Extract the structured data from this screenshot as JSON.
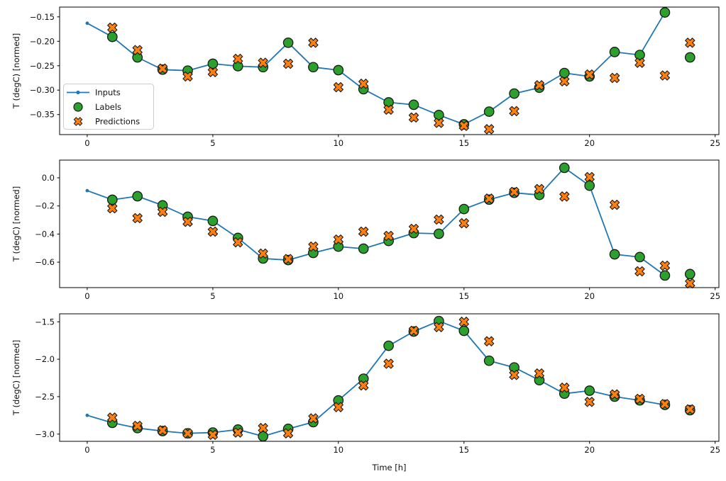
{
  "figure": {
    "background": "#ffffff",
    "colors": {
      "inputs": "#1f77b4",
      "labels": "#2ca02c",
      "predictions": "#ff7f0e",
      "marker_edge": "#1a1a1a",
      "axis": "#000000",
      "legend_border": "#cccccc"
    },
    "legend": {
      "position": "upper-left-of-first-subplot",
      "items": [
        {
          "label": "Inputs",
          "marker": "line-with-dot",
          "color": "#1f77b4"
        },
        {
          "label": "Labels",
          "marker": "filled-circle",
          "color": "#2ca02c"
        },
        {
          "label": "Predictions",
          "marker": "filled-x",
          "color": "#ff7f0e"
        }
      ]
    }
  },
  "chart_data": [
    {
      "type": "line",
      "subplot": 1,
      "ylabel": "T (degC) [normed]",
      "xlabel": "",
      "legend": true,
      "grid": false,
      "xlim": [
        -1.1,
        25.15
      ],
      "ylim": [
        -0.391,
        -0.13
      ],
      "xticks": [
        0,
        5,
        10,
        15,
        20,
        25
      ],
      "xtick_labels": [
        "0",
        "5",
        "10",
        "15",
        "20",
        "25"
      ],
      "yticks": [
        -0.15,
        -0.2,
        -0.25,
        -0.3,
        -0.35
      ],
      "ytick_labels": [
        "−0.15",
        "−0.20",
        "−0.25",
        "−0.30",
        "−0.35"
      ],
      "series": [
        {
          "name": "Inputs",
          "type": "line+dot",
          "x": [
            0,
            1,
            2,
            3,
            4,
            5,
            6,
            7,
            8,
            9,
            10,
            11,
            12,
            13,
            14,
            15,
            16,
            17,
            18,
            19,
            20,
            21,
            22,
            23
          ],
          "y": [
            -0.163,
            -0.191,
            -0.233,
            -0.258,
            -0.26,
            -0.246,
            -0.251,
            -0.253,
            -0.203,
            -0.253,
            -0.259,
            -0.298,
            -0.325,
            -0.33,
            -0.351,
            -0.37,
            -0.344,
            -0.307,
            -0.295,
            -0.265,
            -0.272,
            -0.222,
            -0.228,
            -0.141
          ]
        },
        {
          "name": "Labels",
          "type": "scatter-circle",
          "x": [
            1,
            2,
            3,
            4,
            5,
            6,
            7,
            8,
            9,
            10,
            11,
            12,
            13,
            14,
            15,
            16,
            17,
            18,
            19,
            20,
            21,
            22,
            23,
            24
          ],
          "y": [
            -0.191,
            -0.233,
            -0.258,
            -0.26,
            -0.246,
            -0.251,
            -0.253,
            -0.203,
            -0.253,
            -0.259,
            -0.298,
            -0.325,
            -0.33,
            -0.351,
            -0.37,
            -0.344,
            -0.307,
            -0.295,
            -0.265,
            -0.272,
            -0.222,
            -0.228,
            -0.141,
            -0.233
          ]
        },
        {
          "name": "Predictions",
          "type": "scatter-x",
          "x": [
            1,
            2,
            3,
            4,
            5,
            6,
            7,
            8,
            9,
            10,
            11,
            12,
            13,
            14,
            15,
            16,
            17,
            18,
            19,
            20,
            21,
            22,
            23,
            24
          ],
          "y": [
            -0.172,
            -0.218,
            -0.256,
            -0.272,
            -0.263,
            -0.236,
            -0.244,
            -0.246,
            -0.203,
            -0.294,
            -0.287,
            -0.34,
            -0.356,
            -0.367,
            -0.373,
            -0.38,
            -0.343,
            -0.29,
            -0.282,
            -0.268,
            -0.275,
            -0.244,
            -0.27,
            -0.203
          ]
        }
      ]
    },
    {
      "type": "line",
      "subplot": 2,
      "ylabel": "T (degC) [normed]",
      "xlabel": "",
      "legend": false,
      "grid": false,
      "xlim": [
        -1.1,
        25.15
      ],
      "ylim": [
        -0.781,
        0.126
      ],
      "xticks": [
        0,
        5,
        10,
        15,
        20,
        25
      ],
      "xtick_labels": [
        "0",
        "5",
        "10",
        "15",
        "20",
        "25"
      ],
      "yticks": [
        0.0,
        -0.2,
        -0.4,
        -0.6
      ],
      "ytick_labels": [
        "0.0",
        "−0.2",
        "−0.4",
        "−0.6"
      ],
      "series": [
        {
          "name": "Inputs",
          "type": "line+dot",
          "x": [
            0,
            1,
            2,
            3,
            4,
            5,
            6,
            7,
            8,
            9,
            10,
            11,
            12,
            13,
            14,
            15,
            16,
            17,
            18,
            19,
            20,
            21,
            22,
            23
          ],
          "y": [
            -0.091,
            -0.156,
            -0.131,
            -0.196,
            -0.277,
            -0.307,
            -0.428,
            -0.574,
            -0.585,
            -0.534,
            -0.489,
            -0.504,
            -0.449,
            -0.393,
            -0.398,
            -0.222,
            -0.155,
            -0.107,
            -0.122,
            0.071,
            -0.056,
            -0.544,
            -0.564,
            -0.695
          ]
        },
        {
          "name": "Labels",
          "type": "scatter-circle",
          "x": [
            1,
            2,
            3,
            4,
            5,
            6,
            7,
            8,
            9,
            10,
            11,
            12,
            13,
            14,
            15,
            16,
            17,
            18,
            19,
            20,
            21,
            22,
            23,
            24
          ],
          "y": [
            -0.156,
            -0.131,
            -0.196,
            -0.277,
            -0.307,
            -0.428,
            -0.574,
            -0.585,
            -0.534,
            -0.489,
            -0.504,
            -0.449,
            -0.393,
            -0.398,
            -0.222,
            -0.155,
            -0.107,
            -0.122,
            0.071,
            -0.056,
            -0.544,
            -0.564,
            -0.695,
            -0.685
          ]
        },
        {
          "name": "Predictions",
          "type": "scatter-x",
          "x": [
            1,
            2,
            3,
            4,
            5,
            6,
            7,
            8,
            9,
            10,
            11,
            12,
            13,
            14,
            15,
            16,
            17,
            18,
            19,
            20,
            21,
            22,
            23,
            24
          ],
          "y": [
            -0.217,
            -0.287,
            -0.242,
            -0.313,
            -0.383,
            -0.459,
            -0.539,
            -0.578,
            -0.489,
            -0.439,
            -0.383,
            -0.413,
            -0.363,
            -0.297,
            -0.323,
            -0.148,
            -0.1,
            -0.08,
            -0.133,
            0.005,
            -0.192,
            -0.665,
            -0.625,
            -0.751
          ]
        }
      ]
    },
    {
      "type": "line",
      "subplot": 3,
      "ylabel": "T (degC) [normed]",
      "xlabel": "Time [h]",
      "legend": false,
      "grid": false,
      "xlim": [
        -1.1,
        25.15
      ],
      "ylim": [
        -3.097,
        -1.393
      ],
      "xticks": [
        0,
        5,
        10,
        15,
        20,
        25
      ],
      "xtick_labels": [
        "0",
        "5",
        "10",
        "15",
        "20",
        "25"
      ],
      "yticks": [
        -1.5,
        -2.0,
        -2.5,
        -3.0
      ],
      "ytick_labels": [
        "−1.5",
        "−2.0",
        "−2.5",
        "−3.0"
      ],
      "series": [
        {
          "name": "Inputs",
          "type": "line+dot",
          "x": [
            0,
            1,
            2,
            3,
            4,
            5,
            6,
            7,
            8,
            9,
            10,
            11,
            12,
            13,
            14,
            15,
            16,
            17,
            18,
            19,
            20,
            21,
            22,
            23
          ],
          "y": [
            -2.75,
            -2.85,
            -2.92,
            -2.96,
            -2.99,
            -2.98,
            -2.94,
            -3.03,
            -2.93,
            -2.84,
            -2.55,
            -2.26,
            -1.82,
            -1.63,
            -1.49,
            -1.62,
            -2.02,
            -2.11,
            -2.28,
            -2.46,
            -2.42,
            -2.5,
            -2.55,
            -2.61
          ]
        },
        {
          "name": "Labels",
          "type": "scatter-circle",
          "x": [
            1,
            2,
            3,
            4,
            5,
            6,
            7,
            8,
            9,
            10,
            11,
            12,
            13,
            14,
            15,
            16,
            17,
            18,
            19,
            20,
            21,
            22,
            23,
            24
          ],
          "y": [
            -2.85,
            -2.92,
            -2.96,
            -2.99,
            -2.98,
            -2.94,
            -3.03,
            -2.93,
            -2.84,
            -2.55,
            -2.26,
            -1.82,
            -1.63,
            -1.49,
            -1.62,
            -2.02,
            -2.11,
            -2.28,
            -2.46,
            -2.42,
            -2.5,
            -2.55,
            -2.61,
            -2.68
          ]
        },
        {
          "name": "Predictions",
          "type": "scatter-x",
          "x": [
            1,
            2,
            3,
            4,
            5,
            6,
            7,
            8,
            9,
            10,
            11,
            12,
            13,
            14,
            15,
            16,
            17,
            18,
            19,
            20,
            21,
            22,
            23,
            24
          ],
          "y": [
            -2.78,
            -2.89,
            -2.95,
            -2.99,
            -3.01,
            -2.98,
            -2.92,
            -2.99,
            -2.79,
            -2.64,
            -2.35,
            -2.06,
            -1.62,
            -1.57,
            -1.5,
            -1.76,
            -2.21,
            -2.19,
            -2.38,
            -2.57,
            -2.47,
            -2.53,
            -2.6,
            -2.67
          ]
        }
      ]
    }
  ]
}
